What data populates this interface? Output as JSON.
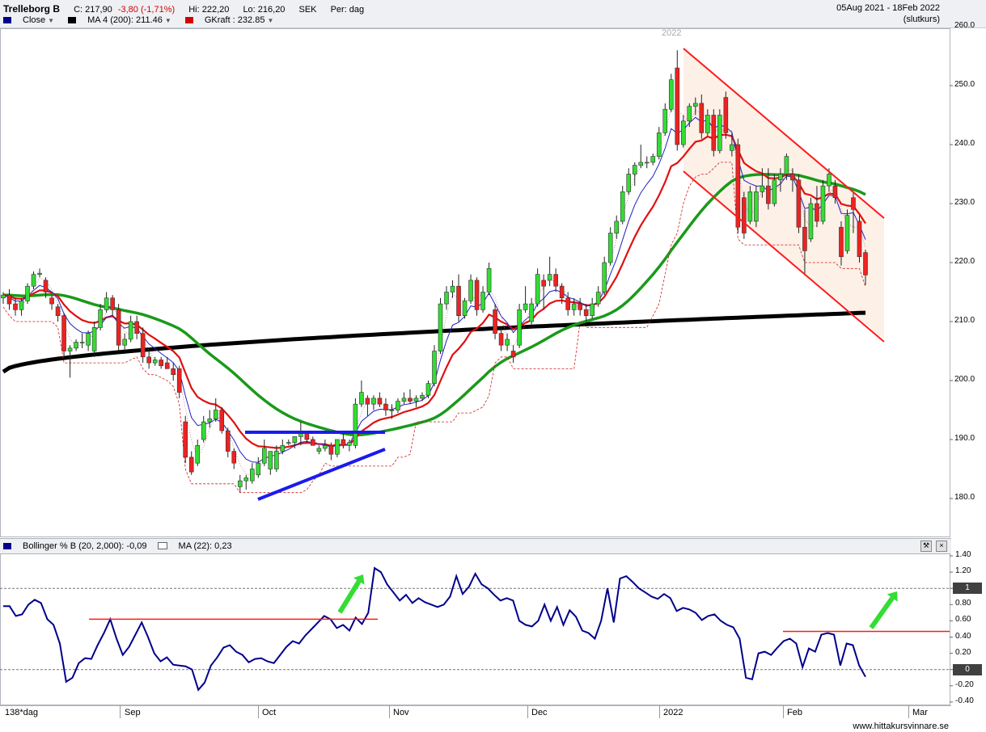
{
  "header": {
    "symbol": "Trelleborg B",
    "close": "C: 217,90",
    "change": "-3,80 (-1,71%)",
    "high": "Hi: 222,20",
    "low": "Lo: 216,20",
    "currency": "SEK",
    "period": "Per: dag",
    "range": "05Aug 2021 - 18Feb 2022",
    "range_note": "(slutkurs)",
    "legend": [
      {
        "label": "Close",
        "color": "#00008b"
      },
      {
        "label": "MA 4 (200): 211.46",
        "color": "#000000"
      },
      {
        "label": "GKraft : 232.85",
        "color": "#d40000"
      }
    ]
  },
  "indicator_header": {
    "legend": [
      {
        "label": "Bollinger % B (20, 2,000): -0,09",
        "color": "#00008b"
      },
      {
        "label": "MA (22): 0,23",
        "color": "#ffffff"
      }
    ]
  },
  "year_marker": "2022",
  "x_axis": {
    "period_label": "138*dag",
    "labels": [
      "Sep",
      "Oct",
      "Nov",
      "Dec",
      "2022",
      "Feb",
      "Mar"
    ]
  },
  "footer": "www.hittakursvinnare.se",
  "chart_data": [
    {
      "type": "candlestick",
      "title": "Trelleborg B",
      "y_ticks": [
        "260.0",
        "250.0",
        "240.0",
        "230.0",
        "220.0",
        "210.0",
        "200.0",
        "190.0",
        "180.0"
      ],
      "ylim": [
        174,
        261
      ],
      "candles": [
        {
          "o": 214,
          "h": 215,
          "l": 213,
          "c": 214.5
        },
        {
          "o": 214.5,
          "h": 215.5,
          "l": 212,
          "c": 213
        },
        {
          "o": 213,
          "h": 214,
          "l": 211,
          "c": 212
        },
        {
          "o": 212,
          "h": 214,
          "l": 211,
          "c": 213.5
        },
        {
          "o": 213.5,
          "h": 216.5,
          "l": 213,
          "c": 216
        },
        {
          "o": 216,
          "h": 218.5,
          "l": 215.5,
          "c": 218
        },
        {
          "o": 218,
          "h": 219,
          "l": 217.5,
          "c": 218.2
        },
        {
          "o": 217,
          "h": 217.5,
          "l": 214,
          "c": 215
        },
        {
          "o": 214,
          "h": 214.5,
          "l": 212,
          "c": 213
        },
        {
          "o": 212.5,
          "h": 213,
          "l": 210,
          "c": 211
        },
        {
          "o": 211,
          "h": 211.5,
          "l": 204,
          "c": 205
        },
        {
          "o": 205,
          "h": 206,
          "l": 200.5,
          "c": 205.5
        },
        {
          "o": 205.5,
          "h": 207,
          "l": 205,
          "c": 206.5
        },
        {
          "o": 206.5,
          "h": 208,
          "l": 205.5,
          "c": 206.5
        },
        {
          "o": 206,
          "h": 208.5,
          "l": 205,
          "c": 208
        },
        {
          "o": 205,
          "h": 210,
          "l": 204,
          "c": 209
        },
        {
          "o": 209,
          "h": 213,
          "l": 208.5,
          "c": 212
        },
        {
          "o": 212,
          "h": 215,
          "l": 211.5,
          "c": 214
        },
        {
          "o": 214,
          "h": 214.5,
          "l": 211,
          "c": 212
        },
        {
          "o": 212,
          "h": 213,
          "l": 205,
          "c": 206
        },
        {
          "o": 206,
          "h": 208,
          "l": 205,
          "c": 207
        },
        {
          "o": 207,
          "h": 211,
          "l": 206.5,
          "c": 210
        },
        {
          "o": 210,
          "h": 211,
          "l": 207,
          "c": 208
        },
        {
          "o": 208,
          "h": 209,
          "l": 203,
          "c": 204
        },
        {
          "o": 204,
          "h": 205,
          "l": 202,
          "c": 203
        },
        {
          "o": 203,
          "h": 204,
          "l": 202.5,
          "c": 203.5
        },
        {
          "o": 203.5,
          "h": 204,
          "l": 202,
          "c": 202.5
        },
        {
          "o": 203,
          "h": 204,
          "l": 202,
          "c": 202
        },
        {
          "o": 202,
          "h": 203,
          "l": 200,
          "c": 201
        },
        {
          "o": 202,
          "h": 202.5,
          "l": 197,
          "c": 198
        },
        {
          "o": 193,
          "h": 194,
          "l": 186,
          "c": 187
        },
        {
          "o": 187,
          "h": 188,
          "l": 184,
          "c": 184.5
        },
        {
          "o": 186,
          "h": 190,
          "l": 185.5,
          "c": 189
        },
        {
          "o": 190,
          "h": 194,
          "l": 189.5,
          "c": 193
        },
        {
          "o": 193,
          "h": 195,
          "l": 192,
          "c": 193.5
        },
        {
          "o": 193.5,
          "h": 197,
          "l": 193,
          "c": 195
        },
        {
          "o": 195,
          "h": 195.5,
          "l": 191,
          "c": 191.5
        },
        {
          "o": 191.5,
          "h": 192,
          "l": 187,
          "c": 188
        },
        {
          "o": 188,
          "h": 188.5,
          "l": 185,
          "c": 186
        },
        {
          "o": 182,
          "h": 184,
          "l": 181,
          "c": 183
        },
        {
          "o": 183,
          "h": 184,
          "l": 181.5,
          "c": 183.5
        },
        {
          "o": 183,
          "h": 186,
          "l": 182.5,
          "c": 185
        },
        {
          "o": 184,
          "h": 187,
          "l": 183.5,
          "c": 186
        },
        {
          "o": 186,
          "h": 190,
          "l": 185.5,
          "c": 188.5
        },
        {
          "o": 185,
          "h": 188,
          "l": 184,
          "c": 188
        },
        {
          "o": 185,
          "h": 189,
          "l": 184.5,
          "c": 188
        },
        {
          "o": 188,
          "h": 190,
          "l": 187.5,
          "c": 189
        },
        {
          "o": 189.5,
          "h": 190,
          "l": 189,
          "c": 189.5
        },
        {
          "o": 189.5,
          "h": 190.5,
          "l": 188.5,
          "c": 190.5
        },
        {
          "o": 190.5,
          "h": 193,
          "l": 189,
          "c": 191
        },
        {
          "o": 191,
          "h": 191.5,
          "l": 189.5,
          "c": 190
        },
        {
          "o": 190,
          "h": 190.5,
          "l": 189,
          "c": 189
        },
        {
          "o": 188,
          "h": 189,
          "l": 187.5,
          "c": 188.5
        },
        {
          "o": 188.5,
          "h": 190,
          "l": 188,
          "c": 189
        },
        {
          "o": 189,
          "h": 189.5,
          "l": 186.5,
          "c": 187.5
        },
        {
          "o": 187.5,
          "h": 190,
          "l": 187,
          "c": 190
        },
        {
          "o": 190,
          "h": 191,
          "l": 188.5,
          "c": 189
        },
        {
          "o": 189,
          "h": 190,
          "l": 188,
          "c": 189.5
        },
        {
          "o": 189,
          "h": 197,
          "l": 188.5,
          "c": 196
        },
        {
          "o": 196,
          "h": 200,
          "l": 195.5,
          "c": 198
        },
        {
          "o": 197,
          "h": 197.5,
          "l": 194,
          "c": 196
        },
        {
          "o": 196,
          "h": 197.5,
          "l": 195,
          "c": 197
        },
        {
          "o": 197,
          "h": 198,
          "l": 195.5,
          "c": 196
        },
        {
          "o": 196,
          "h": 197,
          "l": 194,
          "c": 195
        },
        {
          "o": 195,
          "h": 196,
          "l": 193.5,
          "c": 195
        },
        {
          "o": 195,
          "h": 197,
          "l": 194.5,
          "c": 196.5
        },
        {
          "o": 196.5,
          "h": 198,
          "l": 196,
          "c": 197
        },
        {
          "o": 197,
          "h": 198.5,
          "l": 196,
          "c": 196.5
        },
        {
          "o": 196.5,
          "h": 197.5,
          "l": 195.5,
          "c": 197
        },
        {
          "o": 197,
          "h": 198,
          "l": 196.5,
          "c": 197.5
        },
        {
          "o": 197.5,
          "h": 200,
          "l": 197,
          "c": 199.5
        },
        {
          "o": 199.5,
          "h": 206,
          "l": 199,
          "c": 205
        },
        {
          "o": 205,
          "h": 214,
          "l": 204.5,
          "c": 213
        },
        {
          "o": 213,
          "h": 216,
          "l": 212,
          "c": 215
        },
        {
          "o": 215,
          "h": 217,
          "l": 214,
          "c": 216
        },
        {
          "o": 216,
          "h": 218,
          "l": 210,
          "c": 211
        },
        {
          "o": 211,
          "h": 214,
          "l": 210.5,
          "c": 213.5
        },
        {
          "o": 213.5,
          "h": 218,
          "l": 213,
          "c": 217
        },
        {
          "o": 217,
          "h": 217.5,
          "l": 211,
          "c": 212
        },
        {
          "o": 212,
          "h": 216,
          "l": 211.5,
          "c": 215
        },
        {
          "o": 215,
          "h": 220,
          "l": 214.5,
          "c": 219
        },
        {
          "o": 212,
          "h": 213,
          "l": 207,
          "c": 208
        },
        {
          "o": 208,
          "h": 209,
          "l": 205,
          "c": 206
        },
        {
          "o": 206,
          "h": 208,
          "l": 205,
          "c": 207
        },
        {
          "o": 205,
          "h": 206,
          "l": 203,
          "c": 204
        },
        {
          "o": 206,
          "h": 213,
          "l": 205.5,
          "c": 212
        },
        {
          "o": 212,
          "h": 216,
          "l": 211.5,
          "c": 213
        },
        {
          "o": 210,
          "h": 214,
          "l": 209.5,
          "c": 213
        },
        {
          "o": 213,
          "h": 219,
          "l": 212.5,
          "c": 218
        },
        {
          "o": 217,
          "h": 218,
          "l": 212,
          "c": 216
        },
        {
          "o": 217,
          "h": 221,
          "l": 216,
          "c": 218
        },
        {
          "o": 218,
          "h": 219,
          "l": 215,
          "c": 216
        },
        {
          "o": 216,
          "h": 216.5,
          "l": 213,
          "c": 214
        },
        {
          "o": 214,
          "h": 215,
          "l": 211,
          "c": 212
        },
        {
          "o": 212,
          "h": 214,
          "l": 211,
          "c": 213
        },
        {
          "o": 213,
          "h": 214,
          "l": 211,
          "c": 212
        },
        {
          "o": 212,
          "h": 213,
          "l": 210,
          "c": 211
        },
        {
          "o": 211,
          "h": 214,
          "l": 210.5,
          "c": 213
        },
        {
          "o": 213,
          "h": 216,
          "l": 212.5,
          "c": 215
        },
        {
          "o": 215,
          "h": 221,
          "l": 214.5,
          "c": 220
        },
        {
          "o": 220,
          "h": 226,
          "l": 219.5,
          "c": 225
        },
        {
          "o": 225,
          "h": 228,
          "l": 224,
          "c": 227
        },
        {
          "o": 227,
          "h": 233,
          "l": 226.5,
          "c": 232
        },
        {
          "o": 232,
          "h": 236,
          "l": 231.5,
          "c": 235
        },
        {
          "o": 235,
          "h": 237,
          "l": 233,
          "c": 236.5
        },
        {
          "o": 236.5,
          "h": 240,
          "l": 236,
          "c": 237
        },
        {
          "o": 237,
          "h": 238,
          "l": 236,
          "c": 237
        },
        {
          "o": 237,
          "h": 238.5,
          "l": 236.5,
          "c": 238
        },
        {
          "o": 238,
          "h": 243,
          "l": 237.5,
          "c": 242
        },
        {
          "o": 242,
          "h": 247,
          "l": 241.5,
          "c": 246
        },
        {
          "o": 246,
          "h": 252,
          "l": 245.5,
          "c": 251
        },
        {
          "o": 253,
          "h": 256,
          "l": 239,
          "c": 240
        },
        {
          "o": 240,
          "h": 245,
          "l": 239.5,
          "c": 244
        },
        {
          "o": 244,
          "h": 247,
          "l": 243,
          "c": 246.5
        },
        {
          "o": 246.5,
          "h": 248,
          "l": 245,
          "c": 247
        },
        {
          "o": 247,
          "h": 248.5,
          "l": 241,
          "c": 242
        },
        {
          "o": 242,
          "h": 246,
          "l": 241.5,
          "c": 245
        },
        {
          "o": 245,
          "h": 246,
          "l": 238,
          "c": 239
        },
        {
          "o": 239,
          "h": 246,
          "l": 238.5,
          "c": 245
        },
        {
          "o": 248,
          "h": 249,
          "l": 241,
          "c": 242
        },
        {
          "o": 239,
          "h": 242,
          "l": 238,
          "c": 240
        },
        {
          "o": 240,
          "h": 241,
          "l": 225,
          "c": 226
        },
        {
          "o": 231,
          "h": 232,
          "l": 224,
          "c": 225
        },
        {
          "o": 227,
          "h": 233,
          "l": 226.5,
          "c": 232
        },
        {
          "o": 227,
          "h": 233,
          "l": 226,
          "c": 232
        },
        {
          "o": 232,
          "h": 236,
          "l": 231,
          "c": 233
        },
        {
          "o": 233,
          "h": 236,
          "l": 229,
          "c": 230
        },
        {
          "o": 230,
          "h": 235,
          "l": 229.5,
          "c": 234
        },
        {
          "o": 234,
          "h": 236,
          "l": 232,
          "c": 235
        },
        {
          "o": 235,
          "h": 238.5,
          "l": 234,
          "c": 238
        },
        {
          "o": 235,
          "h": 236,
          "l": 232,
          "c": 234
        },
        {
          "o": 234,
          "h": 235,
          "l": 225,
          "c": 226
        },
        {
          "o": 226,
          "h": 229,
          "l": 218,
          "c": 222
        },
        {
          "o": 224,
          "h": 231,
          "l": 223.5,
          "c": 230
        },
        {
          "o": 230,
          "h": 233,
          "l": 226,
          "c": 227
        },
        {
          "o": 227,
          "h": 234,
          "l": 226.5,
          "c": 233
        },
        {
          "o": 233,
          "h": 236,
          "l": 232,
          "c": 235
        },
        {
          "o": 233,
          "h": 234,
          "l": 230,
          "c": 231
        },
        {
          "o": 226,
          "h": 227,
          "l": 219.5,
          "c": 221
        },
        {
          "o": 222,
          "h": 229,
          "l": 221.5,
          "c": 228
        },
        {
          "o": 231,
          "h": 232,
          "l": 225,
          "c": 229
        },
        {
          "o": 227,
          "h": 228,
          "l": 220,
          "c": 221
        },
        {
          "o": 221.7,
          "h": 222.2,
          "l": 216.2,
          "c": 217.9
        }
      ],
      "annotations": [
        {
          "type": "falling-channel",
          "color": "#ff0000",
          "fill": "#fdeee4"
        },
        {
          "type": "horizontal-line",
          "color": "#0000ff"
        },
        {
          "type": "rising-trendline",
          "color": "#0000ff"
        }
      ]
    },
    {
      "type": "line",
      "title": "Bollinger % B (20, 2,000): -0,09",
      "y_ticks": [
        "1.40",
        "1.20",
        "1.00",
        "0.80",
        "0.60",
        "0.40",
        "0.20",
        "0.00",
        "-0.20",
        "-0.40"
      ],
      "highlighted_levels": [
        "1",
        "0"
      ],
      "ylim": [
        -0.4,
        1.4
      ],
      "series": [
        {
          "values": [
            0.78,
            0.78,
            0.66,
            0.68,
            0.8,
            0.86,
            0.82,
            0.62,
            0.55,
            0.32,
            -0.15,
            -0.1,
            0.08,
            0.14,
            0.13,
            0.3,
            0.45,
            0.62,
            0.38,
            0.18,
            0.28,
            0.43,
            0.58,
            0.4,
            0.2,
            0.1,
            0.15,
            0.06,
            0.05,
            0.04,
            0.0,
            -0.25,
            -0.16,
            0.05,
            0.15,
            0.27,
            0.3,
            0.22,
            0.18,
            0.09,
            0.13,
            0.14,
            0.1,
            0.08,
            0.18,
            0.28,
            0.35,
            0.32,
            0.42,
            0.5,
            0.58,
            0.66,
            0.62,
            0.51,
            0.55,
            0.48,
            0.64,
            0.56,
            0.7,
            1.25,
            1.2,
            1.05,
            0.95,
            0.85,
            0.92,
            0.82,
            0.88,
            0.83,
            0.8,
            0.77,
            0.8,
            0.9,
            1.15,
            0.93,
            1.02,
            1.18,
            1.05,
            1.0,
            0.92,
            0.85,
            0.88,
            0.85,
            0.6,
            0.55,
            0.53,
            0.6,
            0.8,
            0.6,
            0.77,
            0.55,
            0.73,
            0.65,
            0.48,
            0.45,
            0.38,
            0.6,
            1.0,
            0.58,
            1.12,
            1.15,
            1.08,
            1.0,
            0.95,
            0.9,
            0.87,
            0.93,
            0.88,
            0.72,
            0.76,
            0.74,
            0.7,
            0.61,
            0.66,
            0.68,
            0.6,
            0.55,
            0.52,
            0.38,
            -0.1,
            -0.12,
            0.2,
            0.22,
            0.18,
            0.27,
            0.35,
            0.38,
            0.32,
            0.03,
            0.26,
            0.22,
            0.43,
            0.45,
            0.43,
            0.05,
            0.32,
            0.3,
            0.05,
            -0.09
          ]
        }
      ],
      "annotations": [
        {
          "type": "horizontal-line",
          "value": 0.62,
          "color": "#ff0000"
        },
        {
          "type": "horizontal-line",
          "value": 0.47,
          "color": "#ff0000"
        },
        {
          "type": "arrow",
          "color": "#33cc33"
        },
        {
          "type": "arrow",
          "color": "#33cc33"
        }
      ]
    }
  ]
}
